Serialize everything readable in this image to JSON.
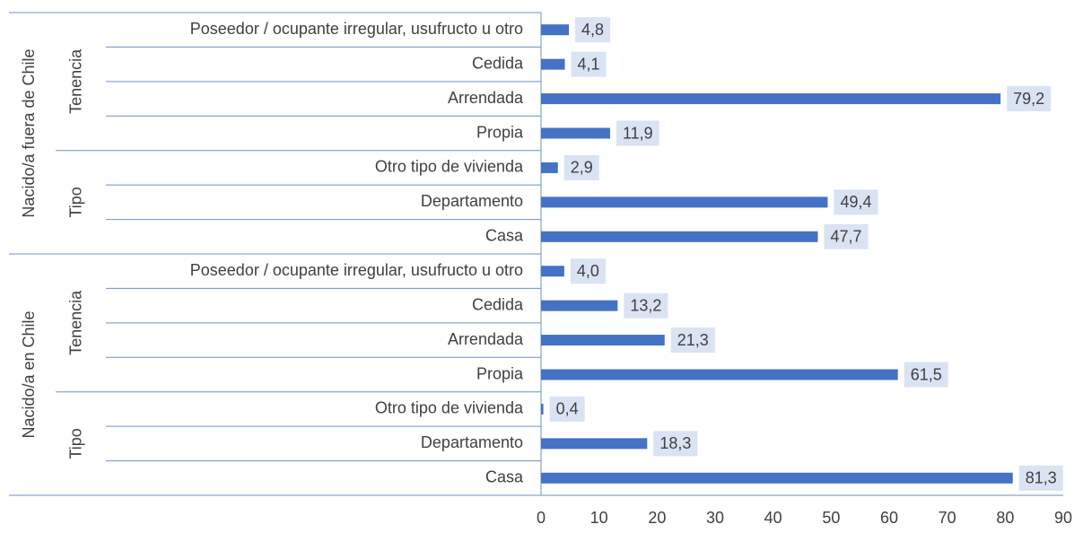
{
  "chart_data": {
    "type": "bar",
    "orientation": "horizontal",
    "color": "#4472c4",
    "label_background": "#dae3f3",
    "xlim": [
      0,
      90
    ],
    "xticks": [
      0,
      10,
      20,
      30,
      40,
      50,
      60,
      70,
      80,
      90
    ],
    "groups": [
      {
        "name": "Nacido/a fuera de Chile",
        "subgroups": [
          {
            "name": "Tenencia",
            "categories": [
              "Poseedor / ocupante irregular, usufructo u otro",
              "Cedida",
              "Arrendada",
              "Propia"
            ],
            "values": [
              4.8,
              4.1,
              79.2,
              11.9
            ],
            "value_labels": [
              "4,8",
              "4,1",
              "79,2",
              "11,9"
            ]
          },
          {
            "name": "Tipo",
            "categories": [
              "Otro tipo de vivienda",
              "Departamento",
              "Casa"
            ],
            "values": [
              2.9,
              49.4,
              47.7
            ],
            "value_labels": [
              "2,9",
              "49,4",
              "47,7"
            ]
          }
        ]
      },
      {
        "name": "Nacido/a en Chile",
        "subgroups": [
          {
            "name": "Tenencia",
            "categories": [
              "Poseedor / ocupante irregular, usufructo u otro",
              "Cedida",
              "Arrendada",
              "Propia"
            ],
            "values": [
              4.0,
              13.2,
              21.3,
              61.5
            ],
            "value_labels": [
              "4,0",
              "13,2",
              "21,3",
              "61,5"
            ]
          },
          {
            "name": "Tipo",
            "categories": [
              "Otro tipo de vivienda",
              "Departamento",
              "Casa"
            ],
            "values": [
              0.4,
              18.3,
              81.3
            ],
            "value_labels": [
              "0,4",
              "18,3",
              "81,3"
            ]
          }
        ]
      }
    ]
  }
}
